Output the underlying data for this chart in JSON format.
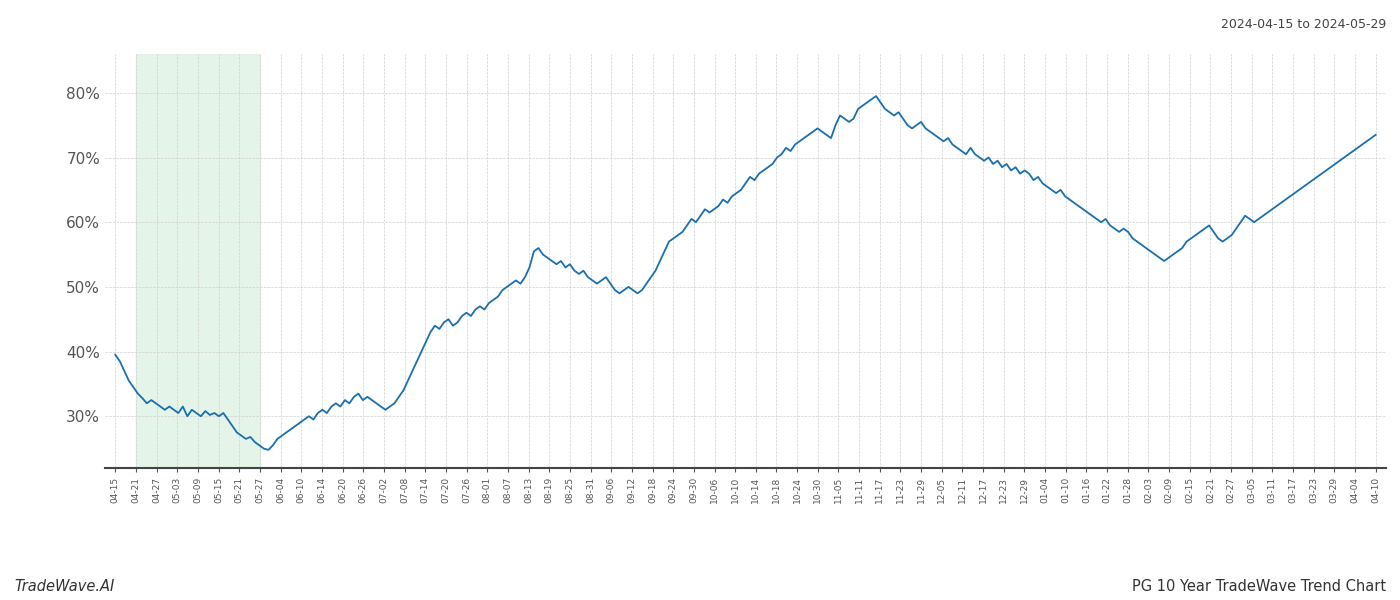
{
  "title_right": "2024-04-15 to 2024-05-29",
  "footer_left": "TradeWave.AI",
  "footer_right": "PG 10 Year TradeWave Trend Chart",
  "line_color": "#1a6faf",
  "shade_color": "#d4edda",
  "shade_alpha": 0.6,
  "ylim": [
    22,
    86
  ],
  "yticks": [
    30,
    40,
    50,
    60,
    70,
    80
  ],
  "background_color": "#ffffff",
  "grid_color": "#d0d0d0",
  "x_labels": [
    "04-15",
    "04-21",
    "04-27",
    "05-03",
    "05-09",
    "05-15",
    "05-21",
    "05-27",
    "06-04",
    "06-10",
    "06-14",
    "06-20",
    "06-26",
    "07-02",
    "07-08",
    "07-14",
    "07-20",
    "07-26",
    "08-01",
    "08-07",
    "08-13",
    "08-19",
    "08-25",
    "08-31",
    "09-06",
    "09-12",
    "09-18",
    "09-24",
    "09-30",
    "10-06",
    "10-10",
    "10-14",
    "10-18",
    "10-24",
    "10-30",
    "11-05",
    "11-11",
    "11-17",
    "11-23",
    "11-29",
    "12-05",
    "12-11",
    "12-17",
    "12-23",
    "12-29",
    "01-04",
    "01-10",
    "01-16",
    "01-22",
    "01-28",
    "02-03",
    "02-09",
    "02-15",
    "02-21",
    "02-27",
    "03-05",
    "03-11",
    "03-17",
    "03-23",
    "03-29",
    "04-04",
    "04-10"
  ],
  "shade_start_label": "04-21",
  "shade_end_label": "05-27",
  "y_values": [
    39.5,
    38.5,
    37.0,
    35.5,
    34.5,
    33.5,
    32.8,
    32.0,
    32.5,
    32.0,
    31.5,
    31.0,
    31.5,
    31.0,
    30.5,
    31.5,
    30.0,
    31.0,
    30.5,
    30.0,
    30.8,
    30.2,
    30.5,
    30.0,
    30.5,
    29.5,
    28.5,
    27.5,
    27.0,
    26.5,
    26.8,
    26.0,
    25.5,
    25.0,
    24.8,
    25.5,
    26.5,
    27.0,
    27.5,
    28.0,
    28.5,
    29.0,
    29.5,
    30.0,
    29.5,
    30.5,
    31.0,
    30.5,
    31.5,
    32.0,
    31.5,
    32.5,
    32.0,
    33.0,
    33.5,
    32.5,
    33.0,
    32.5,
    32.0,
    31.5,
    31.0,
    31.5,
    32.0,
    33.0,
    34.0,
    35.5,
    37.0,
    38.5,
    40.0,
    41.5,
    43.0,
    44.0,
    43.5,
    44.5,
    45.0,
    44.0,
    44.5,
    45.5,
    46.0,
    45.5,
    46.5,
    47.0,
    46.5,
    47.5,
    48.0,
    48.5,
    49.5,
    50.0,
    50.5,
    51.0,
    50.5,
    51.5,
    53.0,
    55.5,
    56.0,
    55.0,
    54.5,
    54.0,
    53.5,
    54.0,
    53.0,
    53.5,
    52.5,
    52.0,
    52.5,
    51.5,
    51.0,
    50.5,
    51.0,
    51.5,
    50.5,
    49.5,
    49.0,
    49.5,
    50.0,
    49.5,
    49.0,
    49.5,
    50.5,
    51.5,
    52.5,
    54.0,
    55.5,
    57.0,
    57.5,
    58.0,
    58.5,
    59.5,
    60.5,
    60.0,
    61.0,
    62.0,
    61.5,
    62.0,
    62.5,
    63.5,
    63.0,
    64.0,
    64.5,
    65.0,
    66.0,
    67.0,
    66.5,
    67.5,
    68.0,
    68.5,
    69.0,
    70.0,
    70.5,
    71.5,
    71.0,
    72.0,
    72.5,
    73.0,
    73.5,
    74.0,
    74.5,
    74.0,
    73.5,
    73.0,
    75.0,
    76.5,
    76.0,
    75.5,
    76.0,
    77.5,
    78.0,
    78.5,
    79.0,
    79.5,
    78.5,
    77.5,
    77.0,
    76.5,
    77.0,
    76.0,
    75.0,
    74.5,
    75.0,
    75.5,
    74.5,
    74.0,
    73.5,
    73.0,
    72.5,
    73.0,
    72.0,
    71.5,
    71.0,
    70.5,
    71.5,
    70.5,
    70.0,
    69.5,
    70.0,
    69.0,
    69.5,
    68.5,
    69.0,
    68.0,
    68.5,
    67.5,
    68.0,
    67.5,
    66.5,
    67.0,
    66.0,
    65.5,
    65.0,
    64.5,
    65.0,
    64.0,
    63.5,
    63.0,
    62.5,
    62.0,
    61.5,
    61.0,
    60.5,
    60.0,
    60.5,
    59.5,
    59.0,
    58.5,
    59.0,
    58.5,
    57.5,
    57.0,
    56.5,
    56.0,
    55.5,
    55.0,
    54.5,
    54.0,
    54.5,
    55.0,
    55.5,
    56.0,
    57.0,
    57.5,
    58.0,
    58.5,
    59.0,
    59.5,
    58.5,
    57.5,
    57.0,
    57.5,
    58.0,
    59.0,
    60.0,
    61.0,
    60.5,
    60.0,
    60.5,
    61.0,
    61.5,
    62.0,
    62.5,
    63.0,
    63.5,
    64.0,
    64.5,
    65.0,
    65.5,
    66.0,
    66.5,
    67.0,
    67.5,
    68.0,
    68.5,
    69.0,
    69.5,
    70.0,
    70.5,
    71.0,
    71.5,
    72.0,
    72.5,
    73.0,
    73.5
  ]
}
